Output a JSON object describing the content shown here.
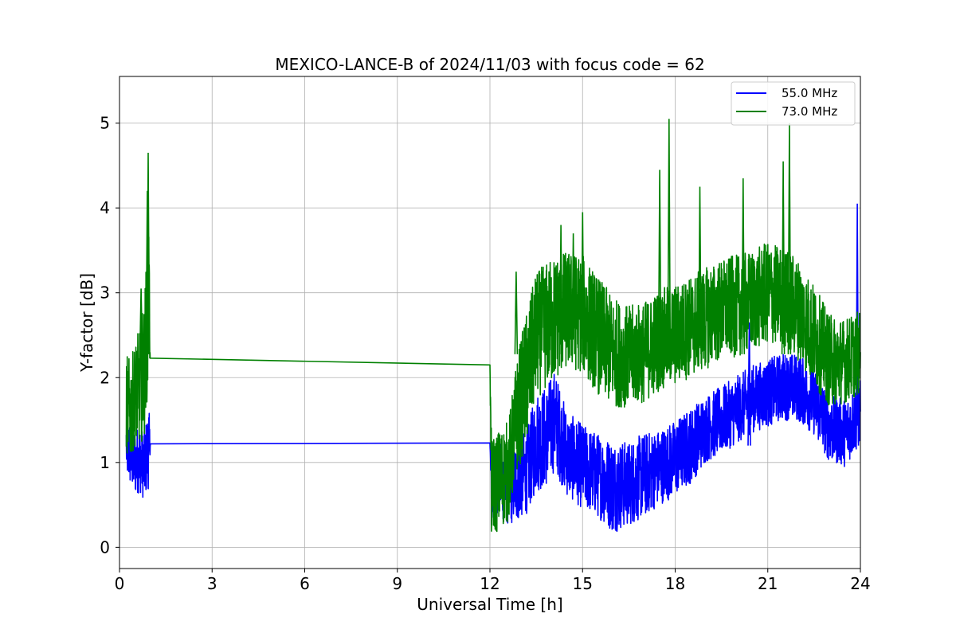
{
  "chart_data": {
    "type": "line",
    "title": "MEXICO-LANCE-B of 2024/11/03 with focus code = 62",
    "xlabel": "Universal Time [h]",
    "ylabel": "Y-factor [dB]",
    "xlim": [
      0,
      24
    ],
    "ylim": [
      -0.25,
      5.55
    ],
    "xticks": [
      0,
      3,
      6,
      9,
      12,
      15,
      18,
      21,
      24
    ],
    "yticks": [
      0,
      1,
      2,
      3,
      4,
      5
    ],
    "grid": true,
    "legend_position": "top-right",
    "series": [
      {
        "name": "55.0 MHz",
        "color": "#0000ff",
        "x": [
          0.22,
          0.35,
          0.5,
          0.65,
          0.8,
          0.95,
          1.0,
          12.0,
          12.05,
          12.3,
          12.6,
          12.9,
          13.2,
          13.5,
          13.8,
          14.1,
          14.5,
          15.0,
          15.5,
          16.0,
          16.5,
          17.0,
          17.5,
          18.0,
          18.5,
          19.0,
          19.5,
          20.0,
          20.5,
          21.0,
          21.5,
          22.0,
          22.5,
          23.0,
          23.5,
          24.0
        ],
        "y": [
          1.2,
          1.1,
          1.0,
          1.05,
          0.95,
          1.2,
          1.22,
          1.23,
          0.6,
          0.8,
          0.7,
          0.8,
          0.9,
          1.25,
          1.3,
          1.5,
          1.1,
          0.95,
          0.85,
          0.72,
          0.75,
          0.85,
          0.95,
          1.05,
          1.2,
          1.4,
          1.5,
          1.62,
          1.75,
          1.82,
          1.9,
          1.88,
          1.72,
          1.4,
          1.35,
          1.6
        ],
        "spread": [
          0.4,
          0.4,
          0.4,
          0.4,
          0.4,
          0.5,
          0.0,
          0.0,
          0.45,
          0.45,
          0.45,
          0.5,
          0.5,
          0.6,
          0.6,
          0.6,
          0.5,
          0.5,
          0.5,
          0.55,
          0.5,
          0.5,
          0.45,
          0.45,
          0.45,
          0.4,
          0.4,
          0.4,
          0.4,
          0.4,
          0.4,
          0.4,
          0.4,
          0.4,
          0.4,
          0.4
        ]
      },
      {
        "name": "73.0 MHz",
        "color": "#008000",
        "x": [
          0.22,
          0.35,
          0.5,
          0.65,
          0.8,
          0.95,
          1.0,
          12.0,
          12.05,
          12.3,
          12.6,
          12.9,
          13.2,
          13.5,
          13.8,
          14.1,
          14.5,
          15.0,
          15.5,
          16.0,
          16.5,
          17.0,
          17.5,
          18.0,
          18.5,
          19.0,
          19.5,
          20.0,
          20.5,
          21.0,
          21.5,
          22.0,
          22.5,
          23.0,
          23.5,
          24.0
        ],
        "y": [
          1.7,
          1.6,
          1.8,
          1.9,
          2.1,
          3.0,
          2.23,
          2.15,
          0.7,
          0.8,
          0.9,
          1.6,
          2.0,
          2.5,
          2.6,
          2.7,
          2.8,
          2.75,
          2.5,
          2.3,
          2.25,
          2.3,
          2.45,
          2.5,
          2.6,
          2.7,
          2.8,
          2.85,
          2.9,
          3.0,
          2.95,
          2.8,
          2.5,
          2.2,
          2.2,
          2.3
        ],
        "spread": [
          0.6,
          0.6,
          0.6,
          0.7,
          0.8,
          1.0,
          0.0,
          0.0,
          0.6,
          0.6,
          0.6,
          0.7,
          0.8,
          0.75,
          0.75,
          0.75,
          0.7,
          0.7,
          0.7,
          0.65,
          0.6,
          0.6,
          0.6,
          0.6,
          0.6,
          0.6,
          0.6,
          0.6,
          0.6,
          0.6,
          0.6,
          0.6,
          0.6,
          0.55,
          0.5,
          0.5
        ]
      }
    ],
    "spikes": [
      {
        "series": 1,
        "x": 0.93,
        "y": 4.65
      },
      {
        "series": 1,
        "x": 0.9,
        "y": 4.2
      },
      {
        "series": 1,
        "x": 0.7,
        "y": 3.05
      },
      {
        "series": 1,
        "x": 12.85,
        "y": 3.25
      },
      {
        "series": 1,
        "x": 14.3,
        "y": 3.8
      },
      {
        "series": 1,
        "x": 14.7,
        "y": 3.7
      },
      {
        "series": 1,
        "x": 15.0,
        "y": 3.95
      },
      {
        "series": 1,
        "x": 17.5,
        "y": 4.45
      },
      {
        "series": 1,
        "x": 17.8,
        "y": 5.05
      },
      {
        "series": 1,
        "x": 18.8,
        "y": 4.25
      },
      {
        "series": 1,
        "x": 20.2,
        "y": 4.35
      },
      {
        "series": 1,
        "x": 21.5,
        "y": 4.55
      },
      {
        "series": 1,
        "x": 21.7,
        "y": 5.0
      },
      {
        "series": 0,
        "x": 23.9,
        "y": 4.05
      },
      {
        "series": 0,
        "x": 20.4,
        "y": 2.65
      }
    ]
  }
}
